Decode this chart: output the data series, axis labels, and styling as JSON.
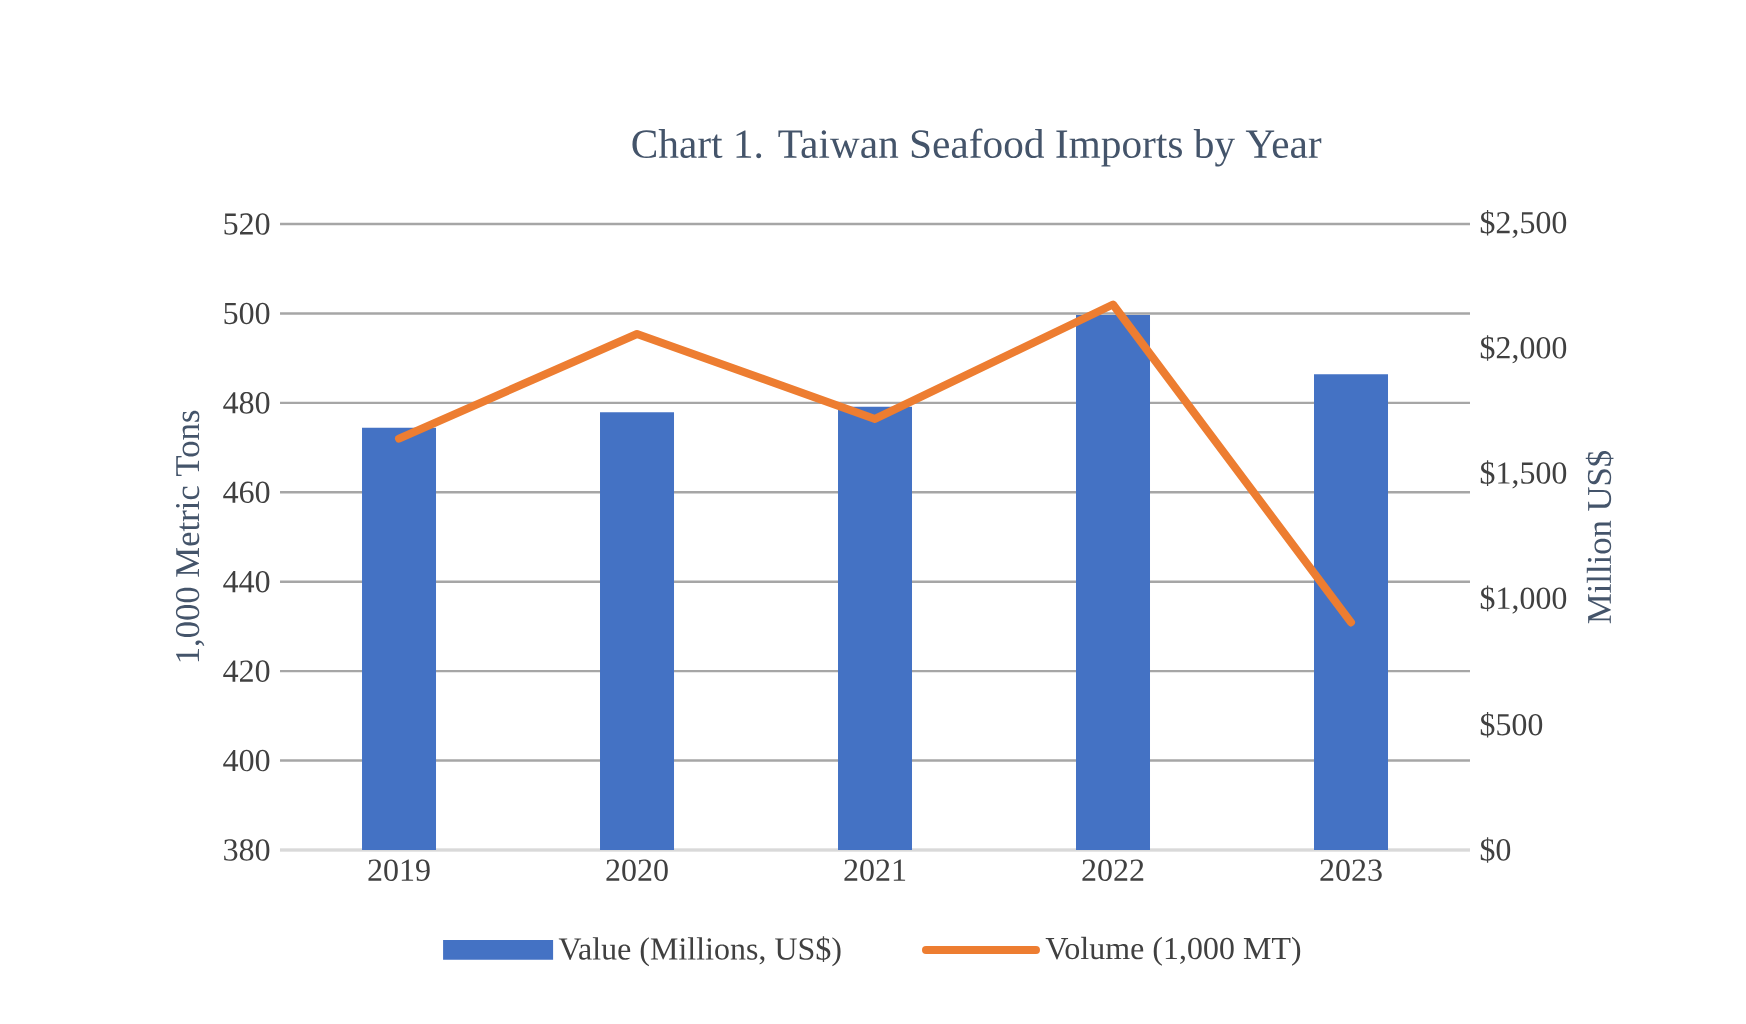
{
  "chart_data": {
    "type": "bar",
    "title": "Chart 1. Taiwan Seafood Imports by Year",
    "ylabel": "1,000 Metric Tons",
    "y2label": "Million US$",
    "categories": [
      "2019",
      "2020",
      "2021",
      "2022",
      "2023"
    ],
    "series": [
      {
        "name": "Value (Millions, US$)",
        "color": "#4472c4",
        "axis": "y2",
        "values": [
          1686,
          1748,
          1770,
          2137,
          1900
        ]
      },
      {
        "name": "Volume (1,000 MT)",
        "type": "line",
        "color": "#ed7d31",
        "values": [
          472.0,
          495.4,
          476.4,
          502.0,
          430.9
        ]
      }
    ],
    "ylim": [
      380,
      520
    ],
    "yticks": [
      380,
      400,
      420,
      440,
      460,
      480,
      500,
      520
    ],
    "y2lim": [
      0,
      2500
    ],
    "y2ticks": [
      {
        "value": 0,
        "label": "$0"
      },
      {
        "value": 500,
        "label": "$500"
      },
      {
        "value": 1000,
        "label": "$1,000"
      },
      {
        "value": 1500,
        "label": "$1,500"
      },
      {
        "value": 2000,
        "label": "$2,000"
      },
      {
        "value": 2500,
        "label": "$2,500"
      }
    ],
    "grid": "y",
    "legend": "bottom"
  }
}
